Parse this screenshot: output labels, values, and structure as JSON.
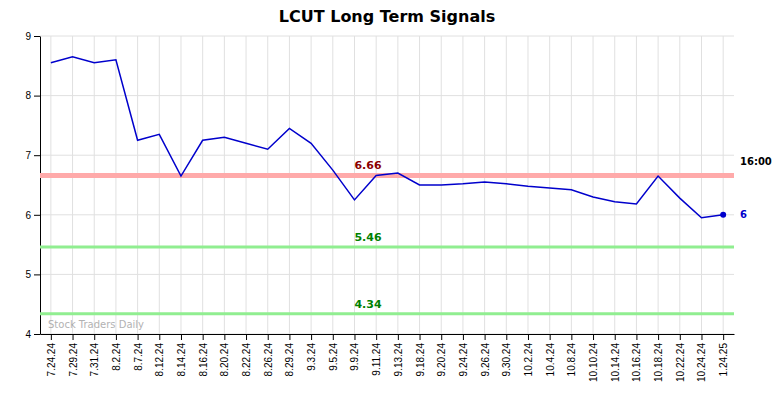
{
  "chart_data": {
    "type": "line",
    "title": "LCUT Long Term Signals",
    "categories": [
      "7.24.24",
      "7.29.24",
      "7.31.24",
      "8.2.24",
      "8.7.24",
      "8.12.24",
      "8.14.24",
      "8.16.24",
      "8.20.24",
      "8.22.24",
      "8.26.24",
      "8.29.24",
      "9.3.24",
      "9.5.24",
      "9.9.24",
      "9.11.24",
      "9.13.24",
      "9.18.24",
      "9.20.24",
      "9.24.24",
      "9.26.24",
      "9.30.24",
      "10.2.24",
      "10.4.24",
      "10.8.24",
      "10.10.24",
      "10.14.24",
      "10.16.24",
      "10.18.24",
      "10.22.24",
      "10.24.24",
      "1.24.25"
    ],
    "values": [
      8.55,
      8.65,
      8.55,
      8.6,
      7.25,
      7.35,
      6.65,
      7.25,
      7.3,
      7.2,
      7.1,
      7.45,
      7.2,
      6.75,
      6.25,
      6.66,
      6.7,
      6.5,
      6.5,
      6.52,
      6.55,
      6.52,
      6.48,
      6.45,
      6.42,
      6.3,
      6.22,
      6.18,
      6.65,
      6.28,
      5.95,
      6.0
    ],
    "color": "#0000cc",
    "ylim": [
      4,
      9
    ],
    "yticks": [
      4,
      5,
      6,
      7,
      8,
      9
    ],
    "grid": true,
    "hlines": [
      {
        "value": 6.66,
        "label": "6.66",
        "color": "#ffaaaa",
        "label_color": "darkred"
      },
      {
        "value": 5.46,
        "label": "5.46",
        "color": "#90ee90",
        "label_color": "green"
      },
      {
        "value": 4.34,
        "label": "4.34",
        "color": "#90ee90",
        "label_color": "green"
      }
    ],
    "hline_label_at": "9.9.24",
    "time_label": "16:00",
    "last_value_label": "6",
    "watermark": "Stock Traders Daily"
  }
}
